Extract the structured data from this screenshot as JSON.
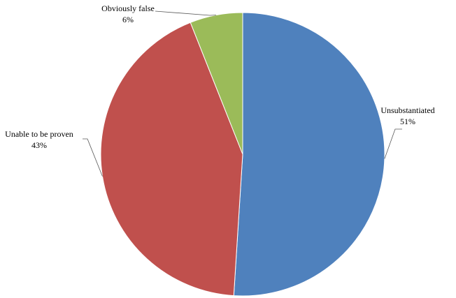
{
  "chart_data": {
    "type": "pie",
    "slices": [
      {
        "label": "Unsubstantiated",
        "value": 51,
        "value_text": "51%",
        "color": "#4F81BD"
      },
      {
        "label": "Unable to be proven",
        "value": 43,
        "value_text": "43%",
        "color": "#C0504D"
      },
      {
        "label": "Obviously false",
        "value": 6,
        "value_text": "6%",
        "color": "#9BBB59"
      }
    ],
    "start": "12 o'clock",
    "direction": "clockwise",
    "legend": "none",
    "labels": "outside with leader lines"
  }
}
